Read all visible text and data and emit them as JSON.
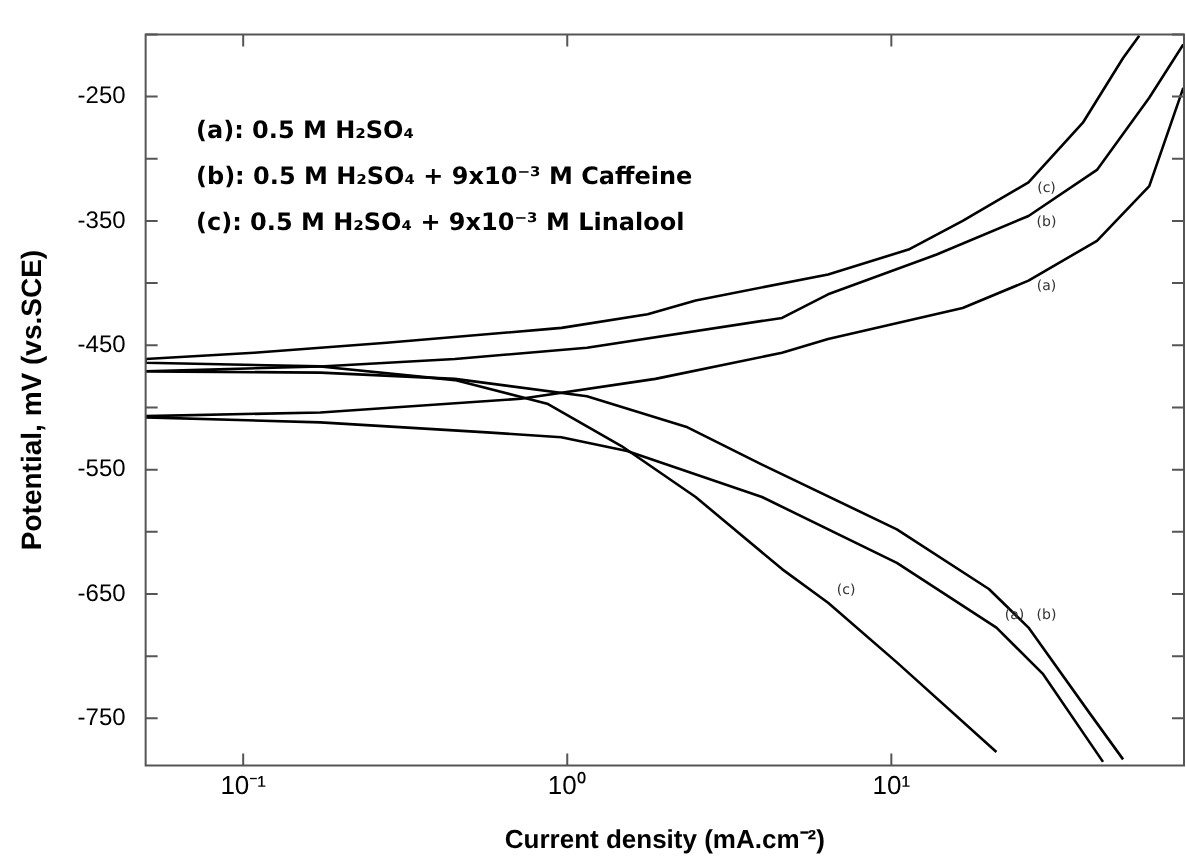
{
  "chart_data": {
    "type": "line",
    "xlabel": "Current density (mA.cm⁻²)",
    "ylabel": "Potential, mV (vs.SCE)",
    "log": "x",
    "grid": false,
    "legend": false,
    "marker": "none",
    "line_style": "solid",
    "xlim": [
      0.05,
      80
    ],
    "xticks": [
      {
        "value": 0.1,
        "label": "10⁻¹"
      },
      {
        "value": 1,
        "label": "10⁰"
      },
      {
        "value": 10,
        "label": "10¹"
      }
    ],
    "ylim": [
      -788,
      -200
    ],
    "yticks": [
      {
        "value": -200,
        "label": null
      },
      -250,
      {
        "value": -300,
        "label": null
      },
      -350,
      {
        "value": -400,
        "label": null
      },
      -450,
      {
        "value": -500,
        "label": null
      },
      -550,
      {
        "value": -600,
        "label": null
      },
      -650,
      {
        "value": -700,
        "label": null
      },
      -750
    ],
    "series": [
      {
        "name": "(a)",
        "color": "#000000",
        "x": [
          45.0,
          29.3,
          21.1,
          10.4,
          3.99,
          1.53,
          0.958,
          0.565,
          0.173,
          0.05,
          0.05,
          0.173,
          0.72,
          1.87,
          4.6,
          6.38,
          16.6,
          26.5,
          43.1,
          62.5,
          79.6
        ],
        "values": [
          -785,
          -714,
          -677,
          -625,
          -572,
          -535,
          -524,
          -520,
          -512,
          -508,
          -507,
          -504,
          -493,
          -477,
          -456,
          -445,
          -420,
          -398,
          -366,
          -322,
          -243
        ]
      },
      {
        "name": "(b)",
        "color": "#000000",
        "x": [
          51.9,
          40.7,
          26.5,
          20.0,
          10.4,
          3.99,
          2.35,
          1.15,
          0.45,
          0.173,
          0.05,
          0.05,
          0.173,
          0.45,
          1.15,
          4.6,
          6.38,
          13.8,
          26.5,
          43.1,
          62.5,
          79.6
        ],
        "values": [
          -783,
          -745,
          -677,
          -646,
          -598,
          -546,
          -516,
          -491,
          -477,
          -472,
          -471,
          -471,
          -467,
          -461,
          -452,
          -428,
          -409,
          -377,
          -346,
          -309,
          -251,
          -208
        ]
      },
      {
        "name": "(c)",
        "color": "#000000",
        "x": [
          21.1,
          10.4,
          6.38,
          4.6,
          2.49,
          1.47,
          0.867,
          0.45,
          0.173,
          0.05,
          0.05,
          0.108,
          0.277,
          0.867,
          0.96,
          1.77,
          2.49,
          6.38,
          11.3,
          16.6,
          26.5,
          39,
          51.9,
          58.2
        ],
        "values": [
          -777,
          -705,
          -657,
          -630,
          -572,
          -531,
          -497,
          -478,
          -467,
          -464,
          -461,
          -456,
          -448,
          -437,
          -436,
          -425,
          -414,
          -393,
          -373,
          -350,
          -319,
          -271,
          -219,
          -201
        ]
      }
    ],
    "annotations": [
      "(a): 0.5 M H₂SO₄",
      "(b): 0.5 M H₂SO₄ + 9x10⁻³ M Caffeine",
      "(c): 0.5 M H₂SO₄ + 9x10⁻³ M Linalool"
    ]
  }
}
